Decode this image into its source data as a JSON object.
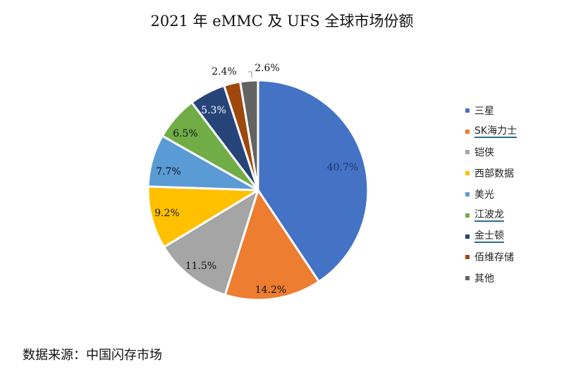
{
  "title": "2021 年 eMMC 及 UFS 全球市场份额",
  "source": "数据来源：中国闪存市场",
  "chart_data": {
    "type": "pie",
    "title": "2021 年 eMMC 及 UFS 全球市场份额",
    "legend_position": "right",
    "slices": [
      {
        "name": "三星",
        "value": 40.7,
        "label": "40.7%",
        "color": "#4472c4"
      },
      {
        "name": "SK海力士",
        "value": 14.2,
        "label": "14.2%",
        "color": "#ed7d31"
      },
      {
        "name": "铠侠",
        "value": 11.5,
        "label": "11.5%",
        "color": "#a5a5a5"
      },
      {
        "name": "西部数据",
        "value": 9.2,
        "label": "9.2%",
        "color": "#ffc000"
      },
      {
        "name": "美光",
        "value": 7.7,
        "label": "7.7%",
        "color": "#5b9bd5"
      },
      {
        "name": "江波龙",
        "value": 6.5,
        "label": "6.5%",
        "color": "#70ad47"
      },
      {
        "name": "金士顿",
        "value": 5.3,
        "label": "5.3%",
        "color": "#264478"
      },
      {
        "name": "佰维存储",
        "value": 2.4,
        "label": "2.4%",
        "color": "#9e480e"
      },
      {
        "name": "其他",
        "value": 2.6,
        "label": "2.6%",
        "color": "#636363"
      }
    ]
  }
}
